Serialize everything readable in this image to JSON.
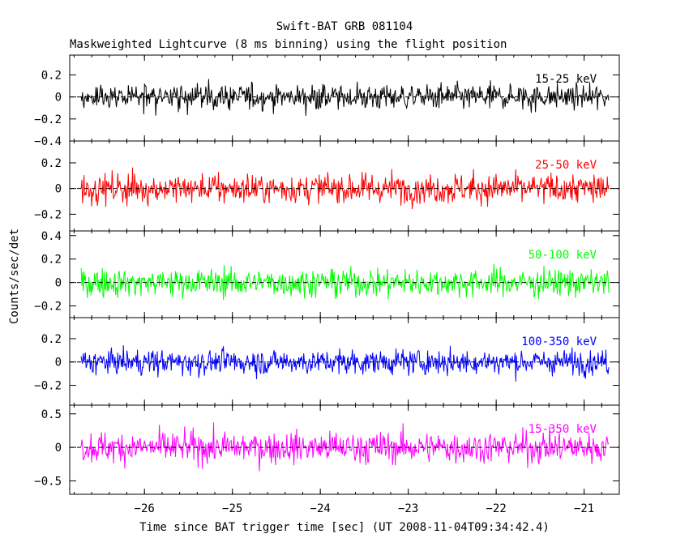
{
  "chart_data": {
    "type": "line",
    "title": "Swift-BAT GRB 081104",
    "subtitle": "Maskweighted Lightcurve (8 ms binning) using the flight position",
    "xlabel": "Time since BAT trigger time [sec] (UT 2008-11-04T09:34:42.4)",
    "ylabel": "Counts/sec/det",
    "xlim": [
      -26.85,
      -20.6
    ],
    "x_ticks": [
      -26,
      -25,
      -24,
      -23,
      -22,
      -21
    ],
    "x_tick_labels": [
      "−26",
      "−25",
      "−24",
      "−23",
      "−22",
      "−21"
    ],
    "x_range_data": [
      -26.72,
      -20.72
    ],
    "panels": [
      {
        "name": "15-25 keV",
        "color": "#000000",
        "ylim": [
          -0.4,
          0.38
        ],
        "y_ticks": [
          -0.4,
          -0.2,
          0,
          0.2
        ],
        "y_tick_labels": [
          "−0.4",
          "−0.2",
          "0",
          "0.2"
        ],
        "noise_sigma": 0.1
      },
      {
        "name": "25-50 keV",
        "color": "#ff0000",
        "ylim": [
          -0.33,
          0.37
        ],
        "y_ticks": [
          -0.2,
          0,
          0.2
        ],
        "y_tick_labels": [
          "−0.2",
          "0",
          "0.2"
        ],
        "noise_sigma": 0.1
      },
      {
        "name": "50-100 keV",
        "color": "#00ff00",
        "ylim": [
          -0.3,
          0.44
        ],
        "y_ticks": [
          -0.2,
          0,
          0.2,
          0.4
        ],
        "y_tick_labels": [
          "−0.2",
          "0",
          "0.2",
          "0.4"
        ],
        "noise_sigma": 0.1
      },
      {
        "name": "100-350 keV",
        "color": "#0000ff",
        "ylim": [
          -0.37,
          0.38
        ],
        "y_ticks": [
          -0.2,
          0,
          0.2
        ],
        "y_tick_labels": [
          "−0.2",
          "0",
          "0.2"
        ],
        "noise_sigma": 0.09
      },
      {
        "name": "15-350 keV",
        "color": "#ff00ff",
        "ylim": [
          -0.7,
          0.63
        ],
        "y_ticks": [
          -0.5,
          0,
          0.5
        ],
        "y_tick_labels": [
          "−0.5",
          "0",
          "0.5"
        ],
        "noise_sigma": 0.2
      }
    ]
  }
}
